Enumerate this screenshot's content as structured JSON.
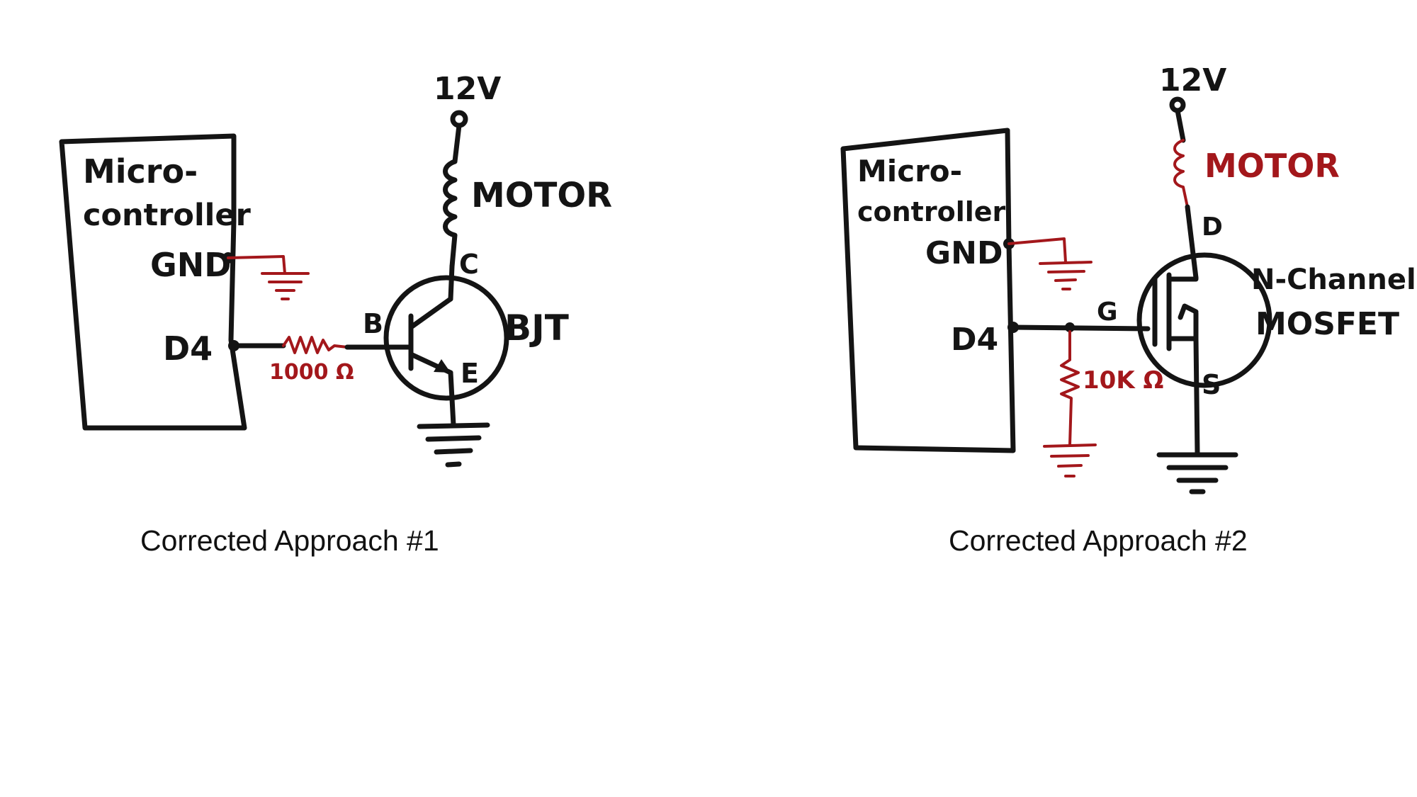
{
  "colors": {
    "ink": "#141414",
    "accent": "#a3171b",
    "background": "#ffffff"
  },
  "left": {
    "caption": "Corrected Approach #1",
    "block_line1": "Micro-",
    "block_line2": "controller",
    "gnd_label": "GND",
    "d4_label": "D4",
    "supply_label": "12V",
    "motor_label": "MOTOR",
    "resistor_label": "1000 Ω",
    "base_label": "B",
    "collector_label": "C",
    "emitter_label": "E",
    "device_label": "BJT"
  },
  "right": {
    "caption": "Corrected Approach #2",
    "block_line1": "Micro-",
    "block_line2": "controller",
    "gnd_label": "GND",
    "d4_label": "D4",
    "supply_label": "12V",
    "motor_label": "MOTOR",
    "resistor_label": "10K Ω",
    "gate_label": "G",
    "drain_label": "D",
    "source_label": "S",
    "device_label_line1": "N-Channel",
    "device_label_line2": "MOSFET"
  }
}
